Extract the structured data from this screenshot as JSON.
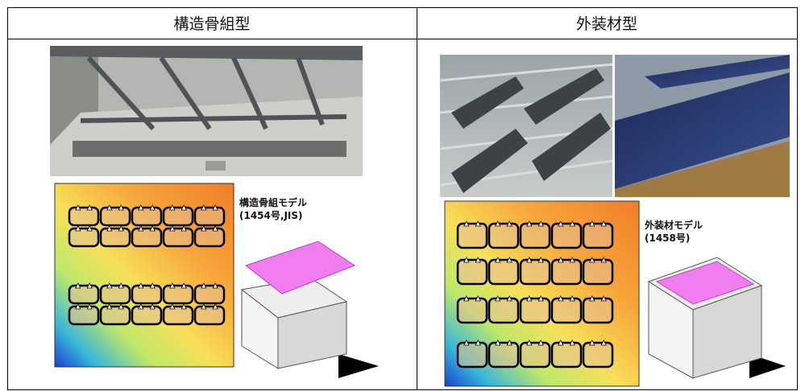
{
  "table": {
    "headers": [
      "構造骨組型",
      "外装材型"
    ],
    "cells": [
      {
        "model_label": "構造骨組モデル",
        "model_number": "(1454号,JIS)"
      },
      {
        "model_label": "外装材モデル",
        "model_number": "(1458号)"
      }
    ]
  }
}
